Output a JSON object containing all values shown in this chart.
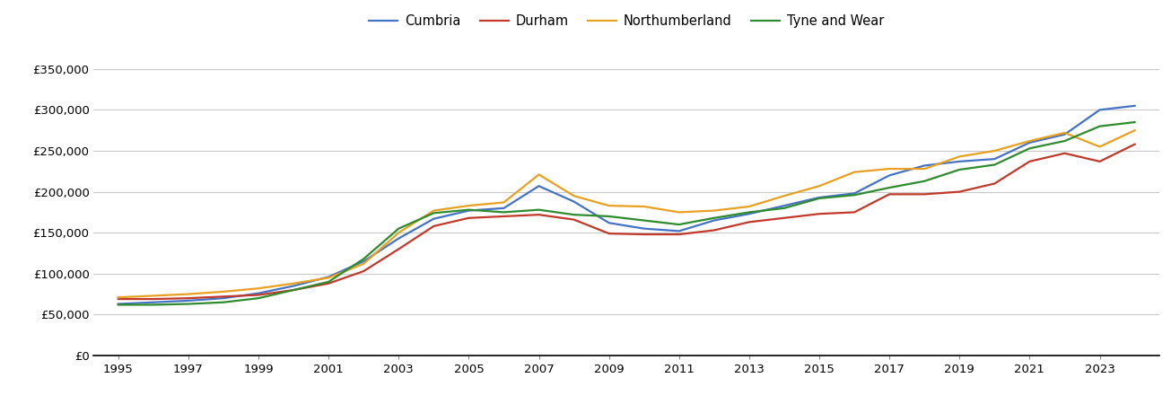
{
  "years": [
    1995,
    1996,
    1997,
    1998,
    1999,
    2000,
    2001,
    2002,
    2003,
    2004,
    2005,
    2006,
    2007,
    2008,
    2009,
    2010,
    2011,
    2012,
    2013,
    2014,
    2015,
    2016,
    2017,
    2018,
    2019,
    2020,
    2021,
    2022,
    2023,
    2024
  ],
  "Cumbria": [
    63000,
    65000,
    67000,
    70000,
    76000,
    85000,
    96000,
    115000,
    143000,
    167000,
    177000,
    180000,
    207000,
    188000,
    162000,
    155000,
    152000,
    165000,
    173000,
    183000,
    193000,
    198000,
    220000,
    232000,
    237000,
    240000,
    260000,
    270000,
    300000,
    305000
  ],
  "Durham": [
    69000,
    69000,
    70000,
    72000,
    74000,
    80000,
    88000,
    103000,
    130000,
    158000,
    168000,
    170000,
    172000,
    166000,
    149000,
    148000,
    148000,
    153000,
    163000,
    168000,
    173000,
    175000,
    197000,
    197000,
    200000,
    210000,
    237000,
    247000,
    237000,
    258000
  ],
  "Northumberland": [
    71000,
    73000,
    75000,
    78000,
    82000,
    88000,
    95000,
    112000,
    150000,
    177000,
    183000,
    187000,
    221000,
    195000,
    183000,
    182000,
    175000,
    177000,
    182000,
    195000,
    207000,
    224000,
    228000,
    228000,
    243000,
    250000,
    262000,
    272000,
    255000,
    275000
  ],
  "Tyne and Wear": [
    62000,
    62000,
    63000,
    65000,
    70000,
    80000,
    90000,
    118000,
    155000,
    174000,
    178000,
    175000,
    178000,
    172000,
    170000,
    165000,
    160000,
    168000,
    175000,
    180000,
    192000,
    196000,
    205000,
    213000,
    227000,
    233000,
    253000,
    262000,
    280000,
    285000
  ],
  "colors": {
    "Cumbria": "#4472c4",
    "Durham": "#c0392b",
    "Northumberland": "#e8a020",
    "Tyne and Wear": "#2e8b2e"
  },
  "ylim": [
    0,
    375000
  ],
  "yticks": [
    0,
    50000,
    100000,
    150000,
    200000,
    250000,
    300000,
    350000
  ],
  "background_color": "#ffffff",
  "grid_color": "#c8c8c8"
}
